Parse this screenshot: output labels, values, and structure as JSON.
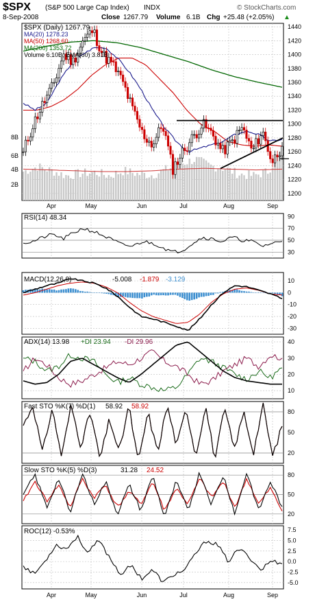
{
  "header": {
    "symbol": "$SPX",
    "name": "(S&P 500 Large Cap Index)",
    "exchange": "INDX",
    "date": "8-Sep-2008",
    "close_label": "Close",
    "close": "1267.79",
    "volume_label": "Volume",
    "volume": "6.1B",
    "chg_label": "Chg",
    "chg": "+25.48 (+2.05%)",
    "copyright": "© StockCharts.com",
    "trend_arrow": "▲"
  },
  "colors": {
    "price": "#000000",
    "ma20": "#1a1a8c",
    "ma50": "#cc0000",
    "ma200": "#006600",
    "volume_bar": "#c8c8c8",
    "macd_hist": "#3d8fd0",
    "plusdi": "#1a6b1a",
    "minusdi": "#8b1a4b",
    "grid": "#bdbdbd"
  },
  "chart_data": [
    {
      "type": "line",
      "title": "$SPX (Daily) 1267.79",
      "legend": [
        "MA(20) 1278.23",
        "MA(50) 1268.60",
        "MA(200) 1353.72",
        "Volume 6.10B, EMA(60) 3.81B"
      ],
      "x_labels": [
        "Apr",
        "May",
        "Jun",
        "Jul",
        "Aug",
        "Sep"
      ],
      "ylim": [
        1190,
        1445
      ],
      "yticks": [
        "1440",
        "1420",
        "1400",
        "1380",
        "1360",
        "1340",
        "1320",
        "1300",
        "1280",
        "1260",
        "1240",
        "1220",
        "1200"
      ],
      "volume_ticks": [
        "8B",
        "6B",
        "4B",
        "2B"
      ],
      "close_anchors": [
        1260,
        1300,
        1330,
        1355,
        1400,
        1390,
        1420,
        1435,
        1400,
        1385,
        1360,
        1320,
        1285,
        1270,
        1300,
        1235,
        1260,
        1280,
        1300,
        1285,
        1260,
        1275,
        1295,
        1260,
        1290,
        1245,
        1268
      ],
      "ma20_anchors": [
        1330,
        1320,
        1330,
        1360,
        1385,
        1400,
        1410,
        1410,
        1395,
        1375,
        1350,
        1320,
        1295,
        1275,
        1260,
        1265,
        1270,
        1275,
        1285,
        1290,
        1285,
        1275,
        1278
      ],
      "ma50_anchors": [
        1320,
        1320,
        1325,
        1335,
        1350,
        1370,
        1385,
        1395,
        1395,
        1385,
        1365,
        1345,
        1320,
        1300,
        1290,
        1275,
        1270,
        1268,
        1270,
        1268
      ],
      "ma200_anchors": [
        1405,
        1412,
        1418,
        1420,
        1417,
        1410,
        1400,
        1390,
        1378,
        1368,
        1360,
        1353
      ],
      "volume_anchors": [
        3.5,
        4.1,
        3.6,
        3.0,
        3.3,
        3.4,
        3.0,
        3.6,
        3.2,
        3.1,
        3.8,
        4.5,
        5.0,
        4.2,
        3.9,
        3.2,
        3.0,
        3.5,
        6.1
      ],
      "volume_ema_anchors": [
        3.8,
        3.7,
        3.6,
        3.5,
        3.5,
        3.6,
        3.8,
        3.9,
        3.8,
        3.7,
        3.8
      ]
    },
    {
      "type": "line",
      "title": "RSI(14) 48.34",
      "ylim": [
        20,
        95
      ],
      "yticks": [
        "90",
        "70",
        "50",
        "30"
      ],
      "guides": [
        70,
        50,
        30
      ],
      "anchors": [
        45,
        48,
        55,
        60,
        52,
        62,
        70,
        65,
        58,
        50,
        42,
        40,
        48,
        45,
        38,
        30,
        33,
        45,
        55,
        52,
        48,
        55,
        50,
        48,
        40,
        45,
        48
      ]
    },
    {
      "type": "line",
      "title": "MACD(12,26,9)",
      "values_text": [
        "-5.008",
        "-1.879",
        "-3.129"
      ],
      "ylim": [
        -35,
        17
      ],
      "yticks": [
        "10",
        "0",
        "-10",
        "-20",
        "-30"
      ],
      "macd_anchors": [
        0,
        3,
        6,
        8,
        12,
        10,
        8,
        4,
        -3,
        -12,
        -20,
        -22,
        -25,
        -28,
        -32,
        -22,
        -10,
        0,
        6,
        5,
        2,
        -1,
        -5
      ],
      "signal_anchors": [
        -2,
        0,
        3,
        6,
        8,
        9,
        8,
        5,
        0,
        -8,
        -15,
        -20,
        -23,
        -26,
        -25,
        -18,
        -8,
        -1,
        3,
        4,
        2,
        -1,
        -2
      ],
      "hist_anchors": [
        2,
        3,
        3,
        2,
        4,
        1,
        0,
        -1,
        -3,
        -4,
        -5,
        -2,
        -2,
        -2,
        -7,
        -4,
        -2,
        1,
        3,
        1,
        0,
        0,
        -3
      ]
    },
    {
      "type": "line",
      "title": "ADX(14) 13.98",
      "values_text": [
        "+DI 23.94",
        "-DI 29.96"
      ],
      "ylim": [
        5,
        43
      ],
      "yticks": [
        "40",
        "30",
        "20",
        "10"
      ],
      "adx_anchors": [
        16,
        14,
        15,
        20,
        28,
        30,
        26,
        22,
        18,
        15,
        20,
        26,
        32,
        38,
        40,
        34,
        28,
        22,
        18,
        16,
        15,
        14,
        14
      ],
      "plusdi_anchors": [
        30,
        28,
        22,
        25,
        32,
        30,
        28,
        20,
        15,
        18,
        14,
        12,
        10,
        12,
        20,
        30,
        28,
        24,
        20,
        17,
        22,
        18,
        24
      ],
      "minusdi_anchors": [
        22,
        30,
        26,
        18,
        14,
        16,
        20,
        24,
        28,
        26,
        30,
        34,
        28,
        25,
        20,
        14,
        16,
        22,
        26,
        30,
        25,
        32,
        30
      ]
    },
    {
      "type": "line",
      "title": "Fast STO %K(7) %D(1)",
      "values_text": [
        "58.92",
        "58.92"
      ],
      "ylim": [
        5,
        95
      ],
      "yticks": [
        "80",
        "50",
        "20"
      ],
      "guides": [
        80,
        20
      ],
      "anchors": [
        60,
        90,
        20,
        85,
        15,
        90,
        30,
        80,
        10,
        70,
        20,
        90,
        5,
        80,
        20,
        90,
        30,
        85,
        15,
        90,
        10,
        85,
        25,
        80,
        20,
        90,
        15,
        58.92
      ]
    },
    {
      "type": "line",
      "title": "Slow STO %K(5) %D(3)",
      "values_text": [
        "31.28",
        "24.52"
      ],
      "ylim": [
        5,
        95
      ],
      "yticks": [
        "80",
        "50",
        "20"
      ],
      "guides": [
        80,
        20
      ],
      "k_anchors": [
        50,
        80,
        30,
        75,
        20,
        85,
        35,
        70,
        20,
        65,
        25,
        80,
        15,
        70,
        25,
        85,
        35,
        80,
        20,
        85,
        25,
        70,
        31.28
      ],
      "d_anchors": [
        40,
        70,
        40,
        65,
        30,
        75,
        45,
        65,
        30,
        55,
        35,
        70,
        25,
        60,
        35,
        75,
        45,
        70,
        30,
        75,
        35,
        60,
        24.52
      ]
    },
    {
      "type": "line",
      "title": "ROC(12) -0.53%",
      "ylim": [
        -6.5,
        8.5
      ],
      "yticks": [
        "7.5",
        "5.0",
        "2.5",
        "0.0",
        "-2.5",
        "-5.0"
      ],
      "anchors": [
        -1,
        -3,
        0,
        4,
        3,
        6,
        2,
        5,
        1,
        -3,
        -1,
        -4,
        -2,
        -5,
        -3,
        -2,
        2,
        5,
        4,
        0,
        3,
        1,
        -2,
        0.2,
        -0.53
      ]
    }
  ]
}
